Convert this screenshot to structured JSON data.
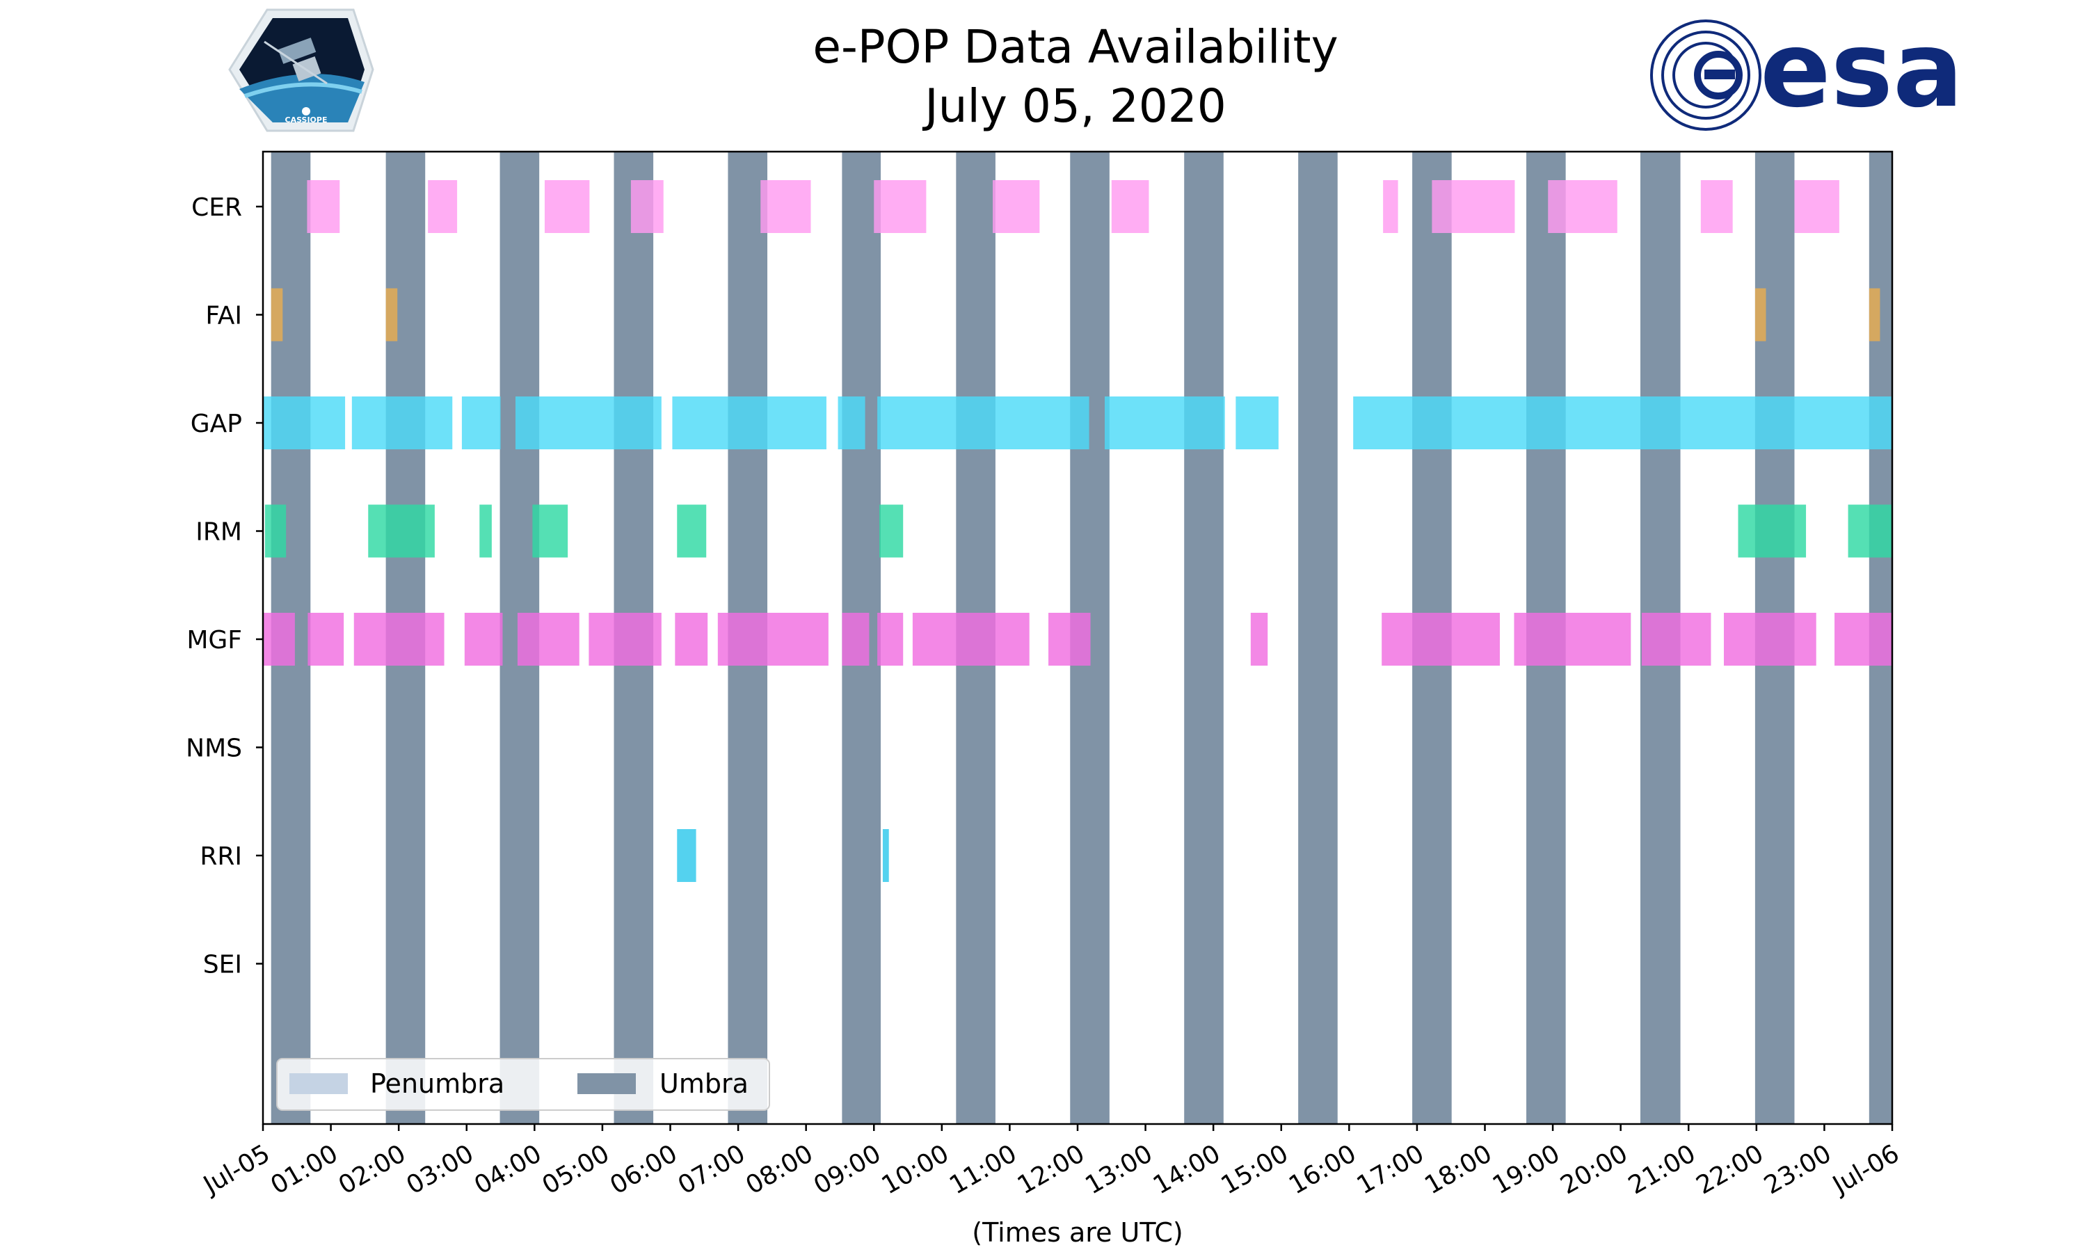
{
  "chart_data": {
    "type": "timeline",
    "title": [
      "e-POP Data Availability",
      "July 05, 2020"
    ],
    "xlabel": "(Times are UTC)",
    "xlim_hours": [
      0,
      24
    ],
    "xticks": [
      {
        "hour": 0,
        "label": "Jul-05"
      },
      {
        "hour": 1,
        "label": "01:00"
      },
      {
        "hour": 2,
        "label": "02:00"
      },
      {
        "hour": 3,
        "label": "03:00"
      },
      {
        "hour": 4,
        "label": "04:00"
      },
      {
        "hour": 5,
        "label": "05:00"
      },
      {
        "hour": 6,
        "label": "06:00"
      },
      {
        "hour": 7,
        "label": "07:00"
      },
      {
        "hour": 8,
        "label": "08:00"
      },
      {
        "hour": 9,
        "label": "09:00"
      },
      {
        "hour": 10,
        "label": "10:00"
      },
      {
        "hour": 11,
        "label": "11:00"
      },
      {
        "hour": 12,
        "label": "12:00"
      },
      {
        "hour": 13,
        "label": "13:00"
      },
      {
        "hour": 14,
        "label": "14:00"
      },
      {
        "hour": 15,
        "label": "15:00"
      },
      {
        "hour": 16,
        "label": "16:00"
      },
      {
        "hour": 17,
        "label": "17:00"
      },
      {
        "hour": 18,
        "label": "18:00"
      },
      {
        "hour": 19,
        "label": "19:00"
      },
      {
        "hour": 20,
        "label": "20:00"
      },
      {
        "hour": 21,
        "label": "21:00"
      },
      {
        "hour": 22,
        "label": "22:00"
      },
      {
        "hour": 23,
        "label": "23:00"
      },
      {
        "hour": 24,
        "label": "Jul-06"
      }
    ],
    "instruments": [
      "CER",
      "FAI",
      "GAP",
      "IRM",
      "MGF",
      "NMS",
      "RRI",
      "SEI"
    ],
    "umbra_intervals": [
      [
        0.12,
        0.7
      ],
      [
        1.81,
        2.39
      ],
      [
        3.49,
        4.07
      ],
      [
        5.17,
        5.75
      ],
      [
        6.85,
        7.43
      ],
      [
        8.53,
        9.1
      ],
      [
        10.21,
        10.79
      ],
      [
        11.89,
        12.47
      ],
      [
        13.57,
        14.15
      ],
      [
        15.25,
        15.83
      ],
      [
        16.93,
        17.51
      ],
      [
        18.61,
        19.19
      ],
      [
        20.29,
        20.88
      ],
      [
        21.98,
        22.56
      ],
      [
        23.66,
        24.0
      ]
    ],
    "penumbra_intervals": [],
    "series": [
      {
        "name": "CER",
        "color": "#ff9bf0",
        "intervals": [
          [
            0.65,
            1.13
          ],
          [
            2.43,
            2.86
          ],
          [
            4.15,
            4.81
          ],
          [
            5.42,
            5.9
          ],
          [
            7.33,
            8.07
          ],
          [
            9.0,
            9.77
          ],
          [
            10.75,
            11.44
          ],
          [
            12.5,
            13.05
          ],
          [
            16.5,
            16.72
          ],
          [
            17.22,
            18.44
          ],
          [
            18.93,
            19.95
          ],
          [
            21.18,
            21.65
          ],
          [
            22.56,
            23.22
          ]
        ]
      },
      {
        "name": "FAI",
        "color": "#e8ad50",
        "intervals": [
          [
            0.12,
            0.29
          ],
          [
            1.81,
            1.98
          ],
          [
            21.98,
            22.14
          ],
          [
            23.66,
            23.82
          ]
        ]
      },
      {
        "name": "GAP",
        "color": "#4ddbf8",
        "intervals": [
          [
            0.0,
            1.21
          ],
          [
            1.31,
            2.79
          ],
          [
            2.93,
            3.5
          ],
          [
            3.72,
            5.87
          ],
          [
            6.03,
            8.3
          ],
          [
            8.47,
            8.87
          ],
          [
            9.05,
            12.17
          ],
          [
            12.4,
            14.17
          ],
          [
            14.33,
            14.96
          ],
          [
            16.06,
            24.0
          ]
        ]
      },
      {
        "name": "IRM",
        "color": "#30d9a4",
        "intervals": [
          [
            0.03,
            0.34
          ],
          [
            1.55,
            2.53
          ],
          [
            3.19,
            3.37
          ],
          [
            3.97,
            4.49
          ],
          [
            6.1,
            6.53
          ],
          [
            9.08,
            9.43
          ],
          [
            21.73,
            22.73
          ],
          [
            23.35,
            24.0
          ]
        ]
      },
      {
        "name": "MGF",
        "color": "#f06ee0",
        "intervals": [
          [
            0.0,
            0.47
          ],
          [
            0.66,
            1.19
          ],
          [
            1.34,
            2.67
          ],
          [
            2.97,
            3.53
          ],
          [
            3.75,
            4.66
          ],
          [
            4.8,
            5.87
          ],
          [
            6.07,
            6.55
          ],
          [
            6.7,
            8.33
          ],
          [
            8.53,
            8.93
          ],
          [
            9.05,
            9.43
          ],
          [
            9.57,
            11.29
          ],
          [
            11.57,
            12.19
          ],
          [
            14.55,
            14.8
          ],
          [
            16.48,
            18.22
          ],
          [
            18.43,
            20.15
          ],
          [
            20.31,
            21.33
          ],
          [
            21.52,
            22.88
          ],
          [
            23.15,
            24.0
          ]
        ]
      },
      {
        "name": "NMS",
        "color": "#f06ee0",
        "intervals": []
      },
      {
        "name": "RRI",
        "color": "#2ec8ec",
        "intervals": [
          [
            6.1,
            6.38
          ],
          [
            9.13,
            9.22
          ]
        ]
      },
      {
        "name": "SEI",
        "color": "#f06ee0",
        "intervals": []
      }
    ],
    "legend": {
      "position": "lower-left",
      "entries": [
        {
          "label": "Penumbra",
          "color": "#c5d3e4"
        },
        {
          "label": "Umbra",
          "color": "#8093a6"
        }
      ]
    }
  },
  "logos": {
    "left": {
      "name": "CASSIOPE mission patch",
      "text": "CASSIOPE"
    },
    "right": {
      "name": "ESA logo",
      "text": "esa"
    }
  }
}
